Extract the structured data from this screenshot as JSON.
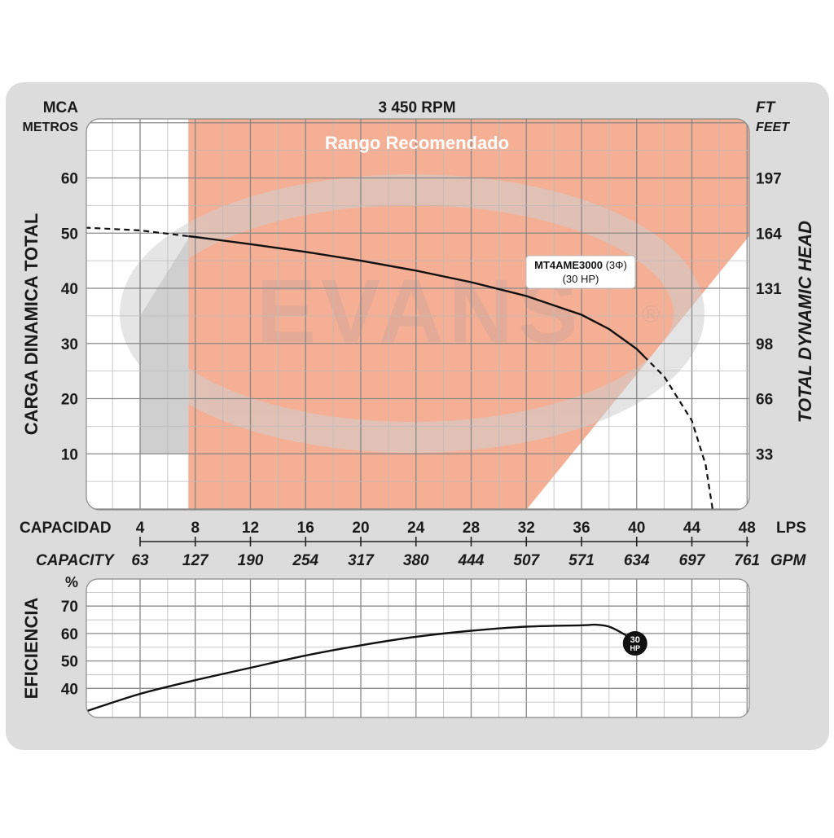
{
  "chart_data": [
    {
      "type": "line",
      "title": "3 450 RPM",
      "range_label": "Rango Recomendado",
      "watermark": "EVANS",
      "watermark_mark": "®",
      "ylabel_left_unit": "MCA",
      "ylabel_left_unit2": "METROS",
      "ylabel_right_unit": "FT",
      "ylabel_right_unit2": "FEET",
      "ylabel_left": "CARGA  DINAMICA  TOTAL",
      "ylabel_right": "TOTAL  DYNAMIC  HEAD",
      "xlabel_lps": "CAPACIDAD",
      "xlabel_gpm": "CAPACITY",
      "x_unit_lps": "LPS",
      "x_unit_gpm": "GPM",
      "x_ticks_lps": [
        "4",
        "8",
        "12",
        "16",
        "20",
        "24",
        "28",
        "32",
        "36",
        "40",
        "44",
        "48"
      ],
      "x_ticks_gpm": [
        "63",
        "127",
        "190",
        "254",
        "317",
        "380",
        "444",
        "507",
        "571",
        "634",
        "697",
        "761"
      ],
      "y_ticks_left": [
        "10",
        "20",
        "30",
        "40",
        "50",
        "60"
      ],
      "y_ticks_right": [
        "33",
        "66",
        "98",
        "131",
        "164",
        "197"
      ],
      "xlim": [
        0,
        48
      ],
      "ylim": [
        0,
        71
      ],
      "recommended_range_lps": [
        7.5,
        48
      ],
      "grid": true,
      "series": [
        {
          "name": "MT4AME3000",
          "label_suffix": "(3Φ)",
          "label_line2": "(30 HP)",
          "points": [
            [
              0,
              51
            ],
            [
              4,
              50.5
            ],
            [
              8,
              49.3
            ],
            [
              12,
              48
            ],
            [
              16,
              46.6
            ],
            [
              20,
              45
            ],
            [
              24,
              43.2
            ],
            [
              28,
              41.1
            ],
            [
              32,
              38.6
            ],
            [
              36,
              35.2
            ],
            [
              38,
              32.6
            ],
            [
              40,
              29
            ],
            [
              42,
              24
            ],
            [
              44,
              16
            ],
            [
              45,
              8
            ],
            [
              45.5,
              0
            ]
          ],
          "solid_range": [
            7.5,
            40.5
          ]
        }
      ]
    },
    {
      "type": "line",
      "ylabel": "EFICIENCIA",
      "y_unit": "%",
      "y_ticks": [
        "40",
        "50",
        "60",
        "70"
      ],
      "xlim": [
        0,
        48
      ],
      "ylim": [
        30,
        77
      ],
      "grid": true,
      "series": [
        {
          "name": "30 HP",
          "badge_line1": "30",
          "badge_line2": "HP",
          "points": [
            [
              0,
              31.5
            ],
            [
              4,
              38
            ],
            [
              8,
              43
            ],
            [
              12,
              47.5
            ],
            [
              16,
              52
            ],
            [
              20,
              55.7
            ],
            [
              24,
              58.8
            ],
            [
              28,
              61
            ],
            [
              32,
              62.5
            ],
            [
              36,
              63
            ],
            [
              37,
              63.2
            ],
            [
              38,
              62.5
            ],
            [
              39,
              60
            ],
            [
              40,
              57
            ]
          ]
        }
      ]
    }
  ]
}
